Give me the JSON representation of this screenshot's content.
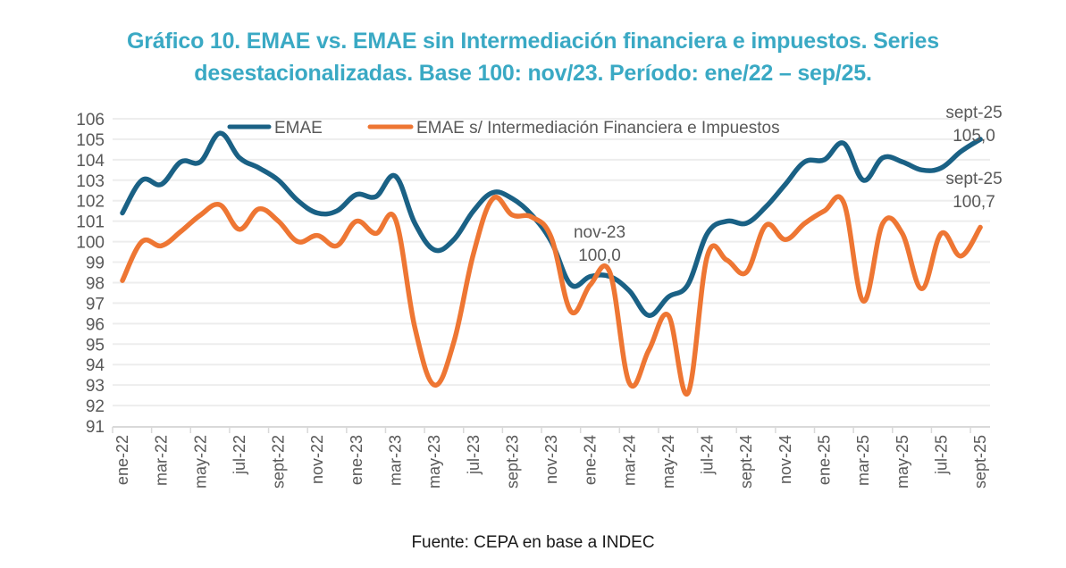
{
  "title_lines": [
    "Gráfico 10. EMAE vs. EMAE sin Intermediación financiera e impuestos. Series",
    "desestacionalizadas. Base 100: nov/23. Período: ene/22 – sep/25."
  ],
  "source": "Fuente: CEPA en base a INDEC",
  "colors": {
    "title": "#3aa9c4",
    "emae": "#1a6185",
    "emae_sin": "#ee7633",
    "grid": "#ededed",
    "axis_text": "#595959"
  },
  "chart_data": {
    "type": "line",
    "title": "Gráfico 10. EMAE vs. EMAE sin Intermediación financiera e impuestos. Series desestacionalizadas. Base 100: nov/23. Período: ene/22 – sep/25.",
    "xlabel": "",
    "ylabel": "",
    "ylim": [
      91,
      106
    ],
    "yticks": [
      "106",
      "105",
      "104",
      "103",
      "102",
      "101",
      "100",
      "99",
      "98",
      "97",
      "96",
      "95",
      "94",
      "93",
      "92",
      "91"
    ],
    "grid": true,
    "legend_position": "top",
    "x": [
      "ene-22",
      "feb-22",
      "mar-22",
      "abr-22",
      "may-22",
      "jun-22",
      "jul-22",
      "ago-22",
      "sept-22",
      "oct-22",
      "nov-22",
      "dic-22",
      "ene-23",
      "feb-23",
      "mar-23",
      "abr-23",
      "may-23",
      "jun-23",
      "jul-23",
      "ago-23",
      "sept-23",
      "oct-23",
      "nov-23",
      "dic-23",
      "ene-24",
      "feb-24",
      "mar-24",
      "abr-24",
      "may-24",
      "jun-24",
      "jul-24",
      "ago-24",
      "sept-24",
      "oct-24",
      "nov-24",
      "dic-24",
      "ene-25",
      "feb-25",
      "mar-25",
      "abr-25",
      "may-25",
      "jun-25",
      "jul-25",
      "ago-25",
      "sept-25"
    ],
    "xtick_labels": [
      "ene-22",
      "mar-22",
      "may-22",
      "jul-22",
      "sept-22",
      "nov-22",
      "ene-23",
      "mar-23",
      "may-23",
      "jul-23",
      "sept-23",
      "nov-23",
      "ene-24",
      "mar-24",
      "may-24",
      "jul-24",
      "sept-24",
      "nov-24",
      "ene-25",
      "mar-25",
      "may-25",
      "jul-25",
      "sept-25"
    ],
    "series": [
      {
        "name": "EMAE",
        "color": "#1a6185",
        "values": [
          101.4,
          103.0,
          102.8,
          103.9,
          103.9,
          105.3,
          104.1,
          103.6,
          103.0,
          102.0,
          101.4,
          101.5,
          102.3,
          102.2,
          103.2,
          100.9,
          99.6,
          100.1,
          101.5,
          102.4,
          102.1,
          101.3,
          100.0,
          97.9,
          98.3,
          98.3,
          97.6,
          96.4,
          97.3,
          97.9,
          100.4,
          101.0,
          100.9,
          101.7,
          102.8,
          103.9,
          104.0,
          104.8,
          103.0,
          104.1,
          103.9,
          103.5,
          103.6,
          104.4,
          105.0
        ]
      },
      {
        "name": "EMAE s/ Intermediación Financiera e Impuestos",
        "color": "#ee7633",
        "values": [
          98.1,
          100.0,
          99.8,
          100.5,
          101.3,
          101.8,
          100.6,
          101.6,
          101.0,
          100.0,
          100.3,
          99.8,
          101.0,
          100.4,
          101.1,
          95.8,
          93.0,
          95.1,
          99.4,
          102.1,
          101.3,
          101.2,
          100.2,
          96.6,
          97.9,
          98.5,
          93.1,
          94.7,
          96.4,
          92.6,
          99.3,
          99.1,
          98.5,
          100.8,
          100.1,
          100.9,
          101.5,
          101.9,
          97.1,
          100.9,
          100.4,
          97.7,
          100.4,
          99.3,
          100.7
        ]
      }
    ],
    "annotations": [
      {
        "x": "nov-23",
        "series": "EMAE",
        "label_line1": "nov-23",
        "label_line2": "100,0"
      },
      {
        "x": "sept-25",
        "series": "EMAE",
        "label_line1": "sept-25",
        "label_line2": "105,0"
      },
      {
        "x": "sept-25",
        "series": "EMAE s/ Intermediación Financiera e Impuestos",
        "label_line1": "sept-25",
        "label_line2": "100,7"
      }
    ]
  }
}
